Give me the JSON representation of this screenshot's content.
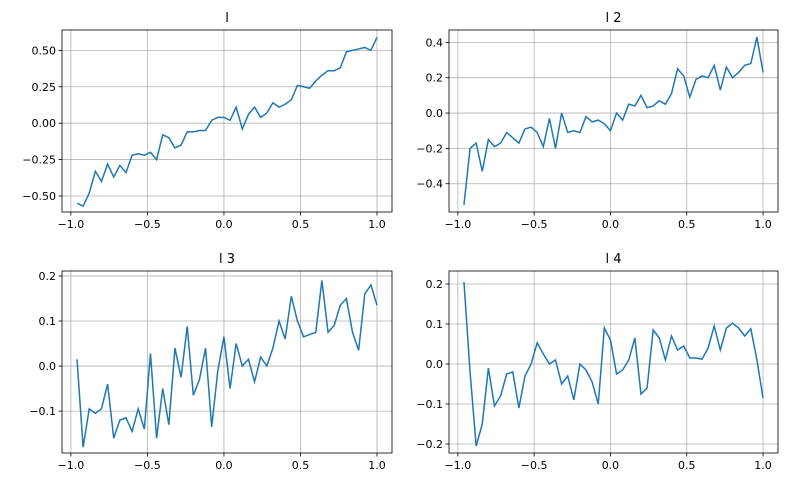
{
  "chart_data": [
    {
      "type": "line",
      "title": "l",
      "color": "#1f77b4",
      "grid": true,
      "x": [
        -0.96,
        -0.92,
        -0.88,
        -0.84,
        -0.8,
        -0.76,
        -0.72,
        -0.68,
        -0.64,
        -0.6,
        -0.56,
        -0.52,
        -0.48,
        -0.44,
        -0.4,
        -0.36,
        -0.32,
        -0.28,
        -0.24,
        -0.2,
        -0.16,
        -0.12,
        -0.08,
        -0.04,
        0,
        0.04,
        0.08,
        0.12,
        0.16,
        0.2,
        0.24,
        0.28,
        0.32,
        0.36,
        0.4,
        0.44,
        0.48,
        0.52,
        0.56,
        0.6,
        0.64,
        0.68,
        0.72,
        0.76,
        0.8,
        0.84,
        0.88,
        0.92,
        0.96,
        1
      ],
      "values": [
        -0.55,
        -0.57,
        -0.48,
        -0.33,
        -0.4,
        -0.28,
        -0.37,
        -0.29,
        -0.34,
        -0.22,
        -0.21,
        -0.22,
        -0.2,
        -0.25,
        -0.08,
        -0.1,
        -0.17,
        -0.15,
        -0.06,
        -0.06,
        -0.05,
        -0.05,
        0.02,
        0.04,
        0.04,
        0.02,
        0.11,
        -0.04,
        0.06,
        0.11,
        0.04,
        0.07,
        0.14,
        0.11,
        0.13,
        0.16,
        0.26,
        0.25,
        0.24,
        0.29,
        0.33,
        0.36,
        0.36,
        0.38,
        0.49,
        0.5,
        0.51,
        0.52,
        0.5,
        0.59
      ],
      "xlim": [
        -1.058,
        1.098
      ],
      "ylim": [
        -0.61,
        0.64
      ],
      "xticks": [
        {
          "value": -1,
          "label": "−1.0"
        },
        {
          "value": -0.5,
          "label": "−0.5"
        },
        {
          "value": 0,
          "label": "0.0"
        },
        0.5,
        {
          "value": 1,
          "label": "1.0"
        }
      ],
      "yticks": [
        {
          "value": -0.5,
          "label": "−0.50"
        },
        {
          "value": -0.25,
          "label": "−0.25"
        },
        {
          "value": 0,
          "label": "0.00"
        },
        0.25,
        {
          "value": 0.5,
          "label": "0.50"
        }
      ]
    },
    {
      "type": "line",
      "title": "l 2",
      "color": "#1f77b4",
      "grid": true,
      "x": [
        -0.96,
        -0.92,
        -0.88,
        -0.84,
        -0.8,
        -0.76,
        -0.72,
        -0.68,
        -0.64,
        -0.6,
        -0.56,
        -0.52,
        -0.48,
        -0.44,
        -0.4,
        -0.36,
        -0.32,
        -0.28,
        -0.24,
        -0.2,
        -0.16,
        -0.12,
        -0.08,
        -0.04,
        0,
        0.04,
        0.08,
        0.12,
        0.16,
        0.2,
        0.24,
        0.28,
        0.32,
        0.36,
        0.4,
        0.44,
        0.48,
        0.52,
        0.56,
        0.6,
        0.64,
        0.68,
        0.72,
        0.76,
        0.8,
        0.84,
        0.88,
        0.92,
        0.96,
        1
      ],
      "values": [
        -0.52,
        -0.2,
        -0.17,
        -0.33,
        -0.15,
        -0.19,
        -0.17,
        -0.11,
        -0.14,
        -0.17,
        -0.09,
        -0.08,
        -0.11,
        -0.19,
        -0.03,
        -0.2,
        0,
        -0.11,
        -0.1,
        -0.11,
        -0.02,
        -0.05,
        -0.04,
        -0.06,
        -0.1,
        0,
        -0.04,
        0.05,
        0.04,
        0.1,
        0.03,
        0.04,
        0.07,
        0.05,
        0.11,
        0.25,
        0.21,
        0.09,
        0.19,
        0.21,
        0.2,
        0.27,
        0.13,
        0.26,
        0.2,
        0.23,
        0.27,
        0.28,
        0.43,
        0.23
      ],
      "xlim": [
        -1.058,
        1.098
      ],
      "ylim": [
        -0.56,
        0.47
      ],
      "xticks": [
        {
          "value": -1,
          "label": "−1.0"
        },
        {
          "value": -0.5,
          "label": "−0.5"
        },
        {
          "value": 0,
          "label": "0.0"
        },
        0.5,
        {
          "value": 1,
          "label": "1.0"
        }
      ],
      "yticks": [
        {
          "value": -0.4,
          "label": "−0.4"
        },
        {
          "value": -0.2,
          "label": "−0.2"
        },
        {
          "value": 0,
          "label": "0.0"
        },
        0.2,
        0.4
      ]
    },
    {
      "type": "line",
      "title": "l 3",
      "color": "#1f77b4",
      "grid": true,
      "x": [
        -0.96,
        -0.92,
        -0.88,
        -0.84,
        -0.8,
        -0.76,
        -0.72,
        -0.68,
        -0.64,
        -0.6,
        -0.56,
        -0.52,
        -0.48,
        -0.44,
        -0.4,
        -0.36,
        -0.32,
        -0.28,
        -0.24,
        -0.2,
        -0.16,
        -0.12,
        -0.08,
        -0.04,
        0,
        0.04,
        0.08,
        0.12,
        0.16,
        0.2,
        0.24,
        0.28,
        0.32,
        0.36,
        0.4,
        0.44,
        0.48,
        0.52,
        0.56,
        0.6,
        0.64,
        0.68,
        0.72,
        0.76,
        0.8,
        0.84,
        0.88,
        0.92,
        0.96,
        1
      ],
      "values": [
        0.015,
        -0.18,
        -0.095,
        -0.105,
        -0.095,
        -0.04,
        -0.16,
        -0.12,
        -0.115,
        -0.145,
        -0.095,
        -0.14,
        0.028,
        -0.16,
        -0.05,
        -0.13,
        0.04,
        -0.025,
        0.088,
        -0.065,
        -0.03,
        0.04,
        -0.135,
        -0.01,
        0.065,
        -0.05,
        0.05,
        0,
        0.015,
        -0.035,
        0.02,
        0,
        0.04,
        0.1,
        0.06,
        0.155,
        0.1,
        0.065,
        0.07,
        0.075,
        0.19,
        0.075,
        0.09,
        0.135,
        0.15,
        0.075,
        0.035,
        0.16,
        0.18,
        0.135
      ],
      "xlim": [
        -1.058,
        1.098
      ],
      "ylim": [
        -0.193,
        0.211
      ],
      "xticks": [
        {
          "value": -1,
          "label": "−1.0"
        },
        {
          "value": -0.5,
          "label": "−0.5"
        },
        {
          "value": 0,
          "label": "0.0"
        },
        0.5,
        {
          "value": 1,
          "label": "1.0"
        }
      ],
      "yticks": [
        {
          "value": -0.1,
          "label": "−0.1"
        },
        {
          "value": 0,
          "label": "0.0"
        },
        0.1,
        0.2
      ]
    },
    {
      "type": "line",
      "title": "l 4",
      "color": "#1f77b4",
      "grid": true,
      "x": [
        -0.96,
        -0.92,
        -0.88,
        -0.84,
        -0.8,
        -0.76,
        -0.72,
        -0.68,
        -0.64,
        -0.6,
        -0.56,
        -0.52,
        -0.48,
        -0.44,
        -0.4,
        -0.36,
        -0.32,
        -0.28,
        -0.24,
        -0.2,
        -0.16,
        -0.12,
        -0.08,
        -0.04,
        0,
        0.04,
        0.08,
        0.12,
        0.16,
        0.2,
        0.24,
        0.28,
        0.32,
        0.36,
        0.4,
        0.44,
        0.48,
        0.52,
        0.56,
        0.6,
        0.64,
        0.68,
        0.72,
        0.76,
        0.8,
        0.84,
        0.88,
        0.92,
        0.96,
        1
      ],
      "values": [
        0.205,
        -0.02,
        -0.205,
        -0.15,
        -0.01,
        -0.105,
        -0.08,
        -0.025,
        -0.02,
        -0.11,
        -0.03,
        0,
        0.053,
        0.025,
        0,
        0.01,
        -0.05,
        -0.03,
        -0.09,
        0,
        -0.015,
        -0.045,
        -0.1,
        0.09,
        0.06,
        -0.025,
        -0.015,
        0.01,
        0.065,
        -0.075,
        -0.06,
        0.085,
        0.065,
        0.01,
        0.07,
        0.035,
        0.045,
        0.015,
        0.015,
        0.012,
        0.04,
        0.095,
        0.035,
        0.09,
        0.102,
        0.09,
        0.07,
        0.088,
        0.01,
        -0.085
      ],
      "xlim": [
        -1.058,
        1.098
      ],
      "ylim": [
        -0.2225,
        0.2325
      ],
      "xticks": [
        {
          "value": -1,
          "label": "−1.0"
        },
        {
          "value": -0.5,
          "label": "−0.5"
        },
        {
          "value": 0,
          "label": "0.0"
        },
        0.5,
        {
          "value": 1,
          "label": "1.0"
        }
      ],
      "yticks": [
        {
          "value": -0.2,
          "label": "−0.2"
        },
        {
          "value": -0.1,
          "label": "−0.1"
        },
        {
          "value": 0,
          "label": "0.0"
        },
        0.1,
        0.2
      ]
    }
  ]
}
